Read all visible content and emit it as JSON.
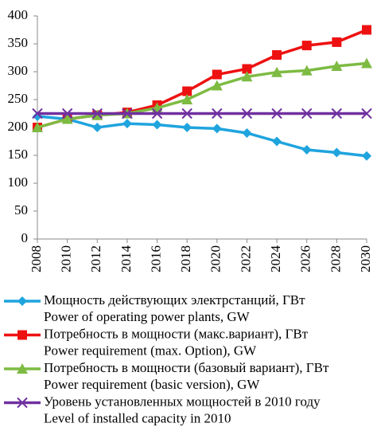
{
  "chart_data": {
    "type": "line",
    "categories": [
      "2008",
      "2010",
      "2012",
      "2014",
      "2016",
      "2018",
      "2020",
      "2022",
      "2024",
      "2026",
      "2028",
      "2030"
    ],
    "ylim": [
      0,
      400
    ],
    "yticks": [
      0,
      50,
      100,
      150,
      200,
      250,
      300,
      350,
      400
    ],
    "grid": false,
    "series": [
      {
        "name": "Мощность действующих электрстанций, ГВт",
        "name_en": "Power of operating power plants, GW",
        "color": "#1fa4de",
        "marker": "diamond",
        "values": [
          220,
          215,
          200,
          207,
          205,
          200,
          198,
          190,
          175,
          160,
          155,
          149
        ]
      },
      {
        "name": "Потребность в мощности (макс.вариант), ГВт",
        "name_en": "Power requirement (max. Option), GW",
        "color": "#ee1111",
        "marker": "square",
        "values": [
          200,
          215,
          222,
          227,
          240,
          265,
          295,
          305,
          330,
          347,
          353,
          375
        ]
      },
      {
        "name": "Потребность в мощности (базовый вариант), ГВт",
        "name_en": "Power requirement (basic version), GW",
        "color": "#7dbb42",
        "marker": "triangle",
        "values": [
          200,
          215,
          222,
          225,
          235,
          250,
          275,
          291,
          299,
          302,
          310,
          315
        ]
      },
      {
        "name": "Уровень установленных мощностей в 2010 году",
        "name_en": "Level of installed capacity in 2010",
        "color": "#7030a0",
        "marker": "x",
        "values": [
          225,
          225,
          225,
          225,
          225,
          225,
          225,
          225,
          225,
          225,
          225,
          225
        ]
      }
    ]
  }
}
